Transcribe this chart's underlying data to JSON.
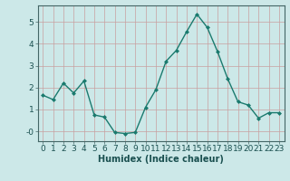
{
  "x": [
    0,
    1,
    2,
    3,
    4,
    5,
    6,
    7,
    8,
    9,
    10,
    11,
    12,
    13,
    14,
    15,
    16,
    17,
    18,
    19,
    20,
    21,
    22,
    23
  ],
  "y": [
    1.65,
    1.45,
    2.2,
    1.75,
    2.3,
    0.75,
    0.65,
    -0.05,
    -0.1,
    -0.05,
    1.1,
    1.9,
    3.2,
    3.7,
    4.55,
    5.35,
    4.75,
    3.65,
    2.4,
    1.35,
    1.2,
    0.6,
    0.85,
    0.85
  ],
  "line_color": "#1a7a6e",
  "marker": "D",
  "marker_size": 2.0,
  "bg_color": "#cce8e8",
  "grid_color_v": "#c8a0a0",
  "grid_color_h": "#c8a0a0",
  "xlabel": "Humidex (Indice chaleur)",
  "xlabel_fontsize": 7,
  "ytick_positions": [
    0,
    1,
    2,
    3,
    4,
    5
  ],
  "ytick_labels": [
    "-0",
    "1",
    "2",
    "3",
    "4",
    "5"
  ],
  "xticks": [
    0,
    1,
    2,
    3,
    4,
    5,
    6,
    7,
    8,
    9,
    10,
    11,
    12,
    13,
    14,
    15,
    16,
    17,
    18,
    19,
    20,
    21,
    22,
    23
  ],
  "xlim": [
    -0.5,
    23.5
  ],
  "ylim": [
    -0.45,
    5.75
  ],
  "tick_fontsize": 6.5,
  "linewidth": 1.0
}
